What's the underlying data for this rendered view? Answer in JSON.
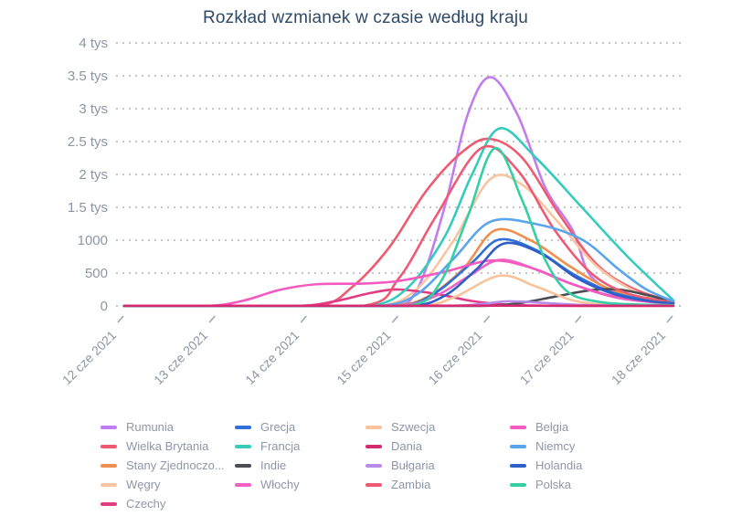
{
  "title": "Rozkład wzmianek w czasie według kraju",
  "styles": {
    "title_color": "#2e4a66",
    "axis_label_color": "#8d95a5",
    "grid_color": "#c6c6ca",
    "tick_color": "#9aa3b2",
    "legend_label_color": "#8e96a8",
    "background": "#ffffff"
  },
  "chart_data": {
    "type": "line",
    "title": "Rozkład wzmianek w czasie według kraju",
    "xlabel": "",
    "ylabel": "",
    "ylim": [
      0,
      4000
    ],
    "grid": "horizontal-dotted",
    "legend_position": "bottom",
    "x_tick_labels": [
      "12 cze 2021",
      "13 cze 2021",
      "14 cze 2021",
      "15 cze 2021",
      "16 cze 2021",
      "17 cze 2021",
      "18 cze 2021"
    ],
    "y_ticks": [
      {
        "label": "0",
        "value": 0
      },
      {
        "label": "500",
        "value": 500
      },
      {
        "label": "1000",
        "value": 1000
      },
      {
        "label": "1.5 tys",
        "value": 1500
      },
      {
        "label": "2 tys",
        "value": 2000
      },
      {
        "label": "2.5 tys",
        "value": 2500
      },
      {
        "label": "3 tys",
        "value": 3000
      },
      {
        "label": "3.5 tys",
        "value": 3500
      },
      {
        "label": "4 tys",
        "value": 4000
      }
    ],
    "legend_columns": [
      [
        0,
        1,
        2,
        3,
        4
      ],
      [
        5,
        6,
        7,
        8
      ],
      [
        9,
        10,
        11,
        12
      ],
      [
        13,
        14,
        15,
        16
      ]
    ],
    "series": [
      {
        "name": "Rumunia",
        "color": "#c07df0",
        "points": [
          [
            0,
            0
          ],
          [
            1,
            0
          ],
          [
            2,
            0
          ],
          [
            2.9,
            0
          ],
          [
            3.2,
            250
          ],
          [
            3.5,
            1500
          ],
          [
            3.75,
            2900
          ],
          [
            4.0,
            3480
          ],
          [
            4.3,
            2900
          ],
          [
            4.6,
            1800
          ],
          [
            4.9,
            1150
          ],
          [
            5.1,
            450
          ],
          [
            5.5,
            140
          ],
          [
            6,
            40
          ]
        ]
      },
      {
        "name": "Wielka Brytania",
        "color": "#ee5a6f",
        "points": [
          [
            0,
            0
          ],
          [
            1,
            0
          ],
          [
            2.1,
            0
          ],
          [
            2.5,
            300
          ],
          [
            2.9,
            900
          ],
          [
            3.3,
            1750
          ],
          [
            3.7,
            2350
          ],
          [
            4.0,
            2540
          ],
          [
            4.35,
            2250
          ],
          [
            4.75,
            1400
          ],
          [
            5.15,
            650
          ],
          [
            5.55,
            270
          ],
          [
            6,
            60
          ]
        ]
      },
      {
        "name": "Stany Zjednoczo...",
        "color": "#f0904f",
        "points": [
          [
            0,
            0
          ],
          [
            1,
            0
          ],
          [
            2,
            0
          ],
          [
            2.9,
            0
          ],
          [
            3.3,
            130
          ],
          [
            3.7,
            560
          ],
          [
            4.05,
            1150
          ],
          [
            4.45,
            990
          ],
          [
            4.85,
            620
          ],
          [
            5.25,
            290
          ],
          [
            5.65,
            110
          ],
          [
            6,
            35
          ]
        ]
      },
      {
        "name": "Węgry",
        "color": "#f7c6a0",
        "points": [
          [
            0,
            0
          ],
          [
            1,
            0
          ],
          [
            2,
            0
          ],
          [
            2.8,
            0
          ],
          [
            3.2,
            260
          ],
          [
            3.6,
            1000
          ],
          [
            4.0,
            1930
          ],
          [
            4.35,
            1840
          ],
          [
            4.75,
            1260
          ],
          [
            5.15,
            620
          ],
          [
            5.6,
            210
          ],
          [
            6,
            55
          ]
        ]
      },
      {
        "name": "Czechy",
        "color": "#e13b84",
        "points": [
          [
            0,
            0
          ],
          [
            1,
            0
          ],
          [
            1.9,
            0
          ],
          [
            2.3,
            70
          ],
          [
            2.7,
            200
          ],
          [
            3.0,
            250
          ],
          [
            3.4,
            185
          ],
          [
            3.8,
            75
          ],
          [
            4.2,
            18
          ],
          [
            4.6,
            3
          ],
          [
            5.2,
            0
          ],
          [
            6,
            0
          ]
        ]
      },
      {
        "name": "Grecja",
        "color": "#3170d8",
        "points": [
          [
            0,
            0
          ],
          [
            1,
            0
          ],
          [
            2,
            0
          ],
          [
            3.0,
            0
          ],
          [
            3.4,
            200
          ],
          [
            3.8,
            660
          ],
          [
            4.1,
            1010
          ],
          [
            4.5,
            850
          ],
          [
            4.9,
            490
          ],
          [
            5.3,
            220
          ],
          [
            5.7,
            90
          ],
          [
            6,
            45
          ]
        ]
      },
      {
        "name": "Francja",
        "color": "#35ccbe",
        "points": [
          [
            0,
            0
          ],
          [
            1,
            0
          ],
          [
            2,
            0
          ],
          [
            2.7,
            0
          ],
          [
            3.1,
            280
          ],
          [
            3.5,
            1050
          ],
          [
            3.8,
            2000
          ],
          [
            4.1,
            2700
          ],
          [
            4.5,
            2250
          ],
          [
            5.0,
            1500
          ],
          [
            5.5,
            750
          ],
          [
            6,
            85
          ]
        ]
      },
      {
        "name": "Indie",
        "color": "#4c4c56",
        "points": [
          [
            0,
            0
          ],
          [
            1,
            0
          ],
          [
            2,
            0
          ],
          [
            3.0,
            0
          ],
          [
            3.9,
            0
          ],
          [
            4.3,
            40
          ],
          [
            4.7,
            140
          ],
          [
            5.1,
            240
          ],
          [
            5.4,
            250
          ],
          [
            5.7,
            170
          ],
          [
            6,
            60
          ]
        ]
      },
      {
        "name": "Włochy",
        "color": "#ef62c4",
        "points": [
          [
            0,
            0
          ],
          [
            1,
            0
          ],
          [
            2,
            0
          ],
          [
            3.0,
            0
          ],
          [
            3.4,
            150
          ],
          [
            3.75,
            440
          ],
          [
            4.1,
            700
          ],
          [
            4.5,
            555
          ],
          [
            4.9,
            330
          ],
          [
            5.4,
            120
          ],
          [
            6,
            30
          ]
        ]
      },
      {
        "name": "Szwecja",
        "color": "#f9c298",
        "points": [
          [
            0,
            0
          ],
          [
            1,
            0
          ],
          [
            2,
            0
          ],
          [
            3.2,
            0
          ],
          [
            3.6,
            130
          ],
          [
            4.1,
            460
          ],
          [
            4.5,
            295
          ],
          [
            4.9,
            85
          ],
          [
            5.3,
            15
          ],
          [
            5.7,
            3
          ],
          [
            6,
            2
          ]
        ]
      },
      {
        "name": "Dania",
        "color": "#d62a70",
        "points": [
          [
            0,
            2
          ],
          [
            1,
            2
          ],
          [
            2,
            2
          ],
          [
            3,
            3
          ],
          [
            4,
            4
          ],
          [
            5,
            3
          ],
          [
            6,
            2
          ]
        ]
      },
      {
        "name": "Bułgaria",
        "color": "#b98ae8",
        "points": [
          [
            0,
            0
          ],
          [
            1,
            0
          ],
          [
            2,
            0
          ],
          [
            3.5,
            0
          ],
          [
            3.9,
            30
          ],
          [
            4.2,
            70
          ],
          [
            4.6,
            45
          ],
          [
            5.0,
            15
          ],
          [
            5.5,
            5
          ],
          [
            6,
            3
          ]
        ]
      },
      {
        "name": "Zambia",
        "color": "#ee5a74",
        "points": [
          [
            0,
            0
          ],
          [
            1,
            0
          ],
          [
            2.6,
            0
          ],
          [
            3.0,
            420
          ],
          [
            3.4,
            1350
          ],
          [
            3.9,
            2400
          ],
          [
            4.3,
            2060
          ],
          [
            4.7,
            1160
          ],
          [
            5.1,
            500
          ],
          [
            5.5,
            190
          ],
          [
            6,
            50
          ]
        ]
      },
      {
        "name": "Belgia",
        "color": "#f45bc0",
        "points": [
          [
            0,
            0
          ],
          [
            0.9,
            0
          ],
          [
            1.3,
            80
          ],
          [
            1.7,
            245
          ],
          [
            2.1,
            330
          ],
          [
            2.6,
            340
          ],
          [
            3.0,
            380
          ],
          [
            3.5,
            520
          ],
          [
            4.0,
            690
          ],
          [
            4.4,
            600
          ],
          [
            4.9,
            330
          ],
          [
            5.4,
            130
          ],
          [
            6,
            30
          ]
        ]
      },
      {
        "name": "Niemcy",
        "color": "#5aa5ec",
        "points": [
          [
            0,
            0
          ],
          [
            1,
            0
          ],
          [
            2,
            0
          ],
          [
            2.8,
            0
          ],
          [
            3.2,
            180
          ],
          [
            3.6,
            720
          ],
          [
            4.0,
            1280
          ],
          [
            4.5,
            1245
          ],
          [
            5.0,
            1010
          ],
          [
            5.4,
            560
          ],
          [
            5.7,
            255
          ],
          [
            6,
            70
          ]
        ]
      },
      {
        "name": "Holandia",
        "color": "#2e5ec8",
        "points": [
          [
            0,
            0
          ],
          [
            1,
            0
          ],
          [
            2,
            0
          ],
          [
            3.1,
            0
          ],
          [
            3.5,
            155
          ],
          [
            3.85,
            560
          ],
          [
            4.15,
            950
          ],
          [
            4.55,
            800
          ],
          [
            4.95,
            420
          ],
          [
            5.35,
            180
          ],
          [
            5.7,
            80
          ],
          [
            6,
            40
          ]
        ]
      },
      {
        "name": "Polska",
        "color": "#36cfa5",
        "points": [
          [
            0,
            0
          ],
          [
            1,
            0
          ],
          [
            2,
            0
          ],
          [
            3.1,
            0
          ],
          [
            3.45,
            350
          ],
          [
            3.75,
            1350
          ],
          [
            4.05,
            2400
          ],
          [
            4.35,
            1600
          ],
          [
            4.6,
            700
          ],
          [
            4.85,
            210
          ],
          [
            5.2,
            60
          ],
          [
            5.6,
            22
          ],
          [
            6,
            12
          ]
        ]
      }
    ]
  }
}
